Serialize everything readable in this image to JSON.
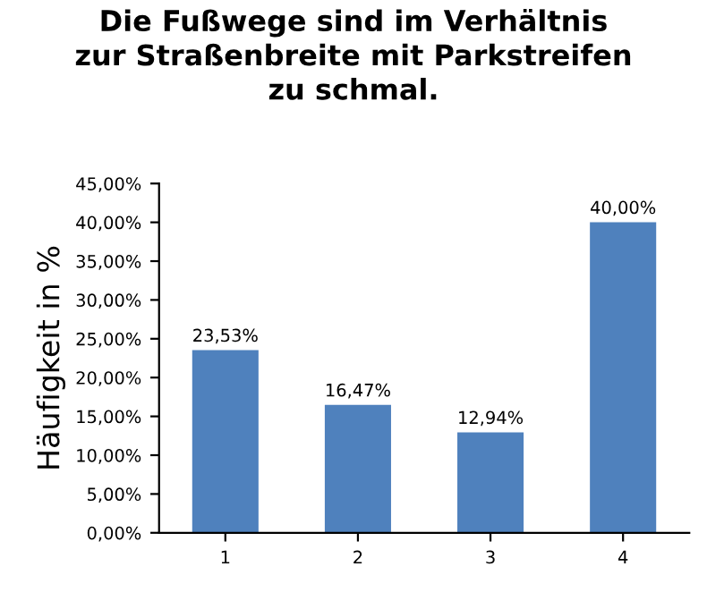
{
  "chart_data": {
    "type": "bar",
    "title": "Die Fußwege sind im Verhältnis\nzur Straßenbreite mit Parkstreifen\nzu schmal.",
    "ylabel": "Häufigkeit in %",
    "categories": [
      "1",
      "2",
      "3",
      "4"
    ],
    "values": [
      23.53,
      16.47,
      12.94,
      40.0
    ],
    "color": "#4f81bd",
    "value_labels": [
      "23,53%",
      "16,47%",
      "12,94%",
      "40,00%"
    ],
    "ylim": [
      0,
      45
    ],
    "yticks": [
      {
        "value": 0,
        "label": "0,00%"
      },
      {
        "value": 5,
        "label": "5,00%"
      },
      {
        "value": 10,
        "label": "10,00%"
      },
      {
        "value": 15,
        "label": "15,00%"
      },
      {
        "value": 20,
        "label": "20,00%"
      },
      {
        "value": 25,
        "label": "25,00%"
      },
      {
        "value": 30,
        "label": "30,00%"
      },
      {
        "value": 35,
        "label": "35,00%"
      },
      {
        "value": 40,
        "label": "40,00%"
      },
      {
        "value": 45,
        "label": "45,00%"
      }
    ],
    "grid": false,
    "legend": false
  }
}
